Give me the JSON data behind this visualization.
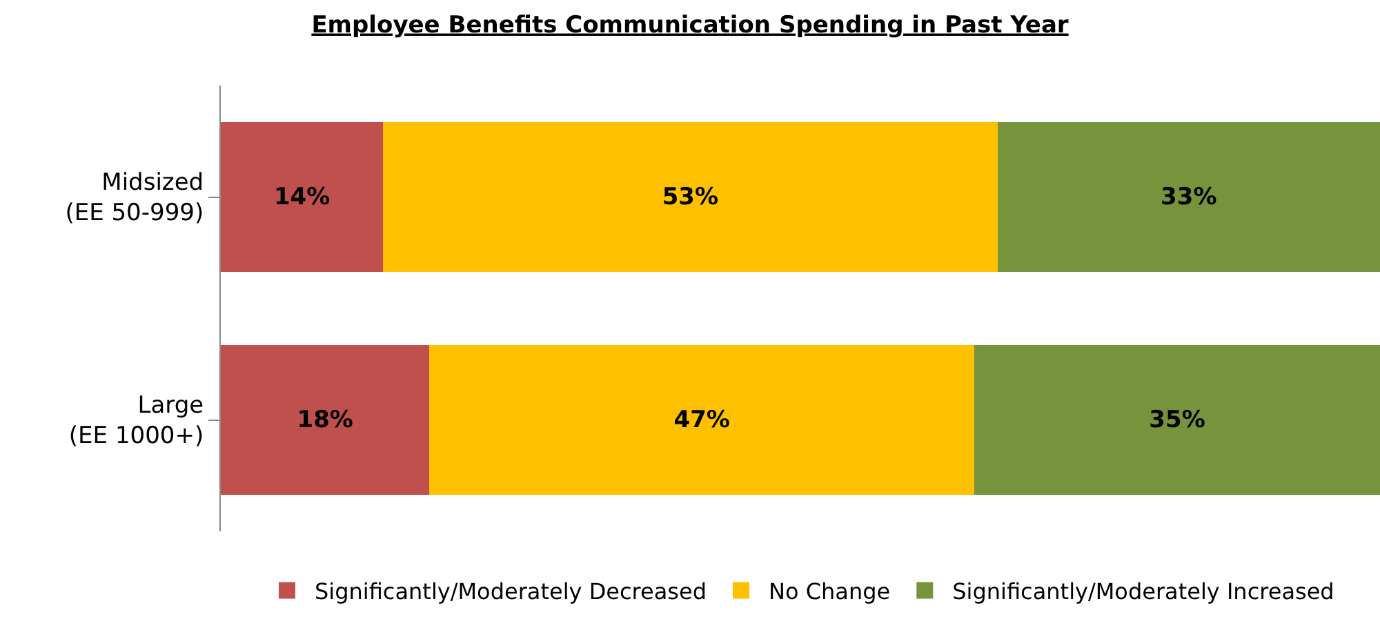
{
  "chart_data": {
    "type": "bar",
    "orientation": "horizontal",
    "stacked": true,
    "title": "Employee Benefits Communication Spending in Past Year",
    "categories": [
      "Midsized\n(EE 50-999)",
      "Large\n(EE 1000+)"
    ],
    "series": [
      {
        "name": "Significantly/Moderately Decreased",
        "color": "#c0504d",
        "values": [
          14,
          18
        ],
        "value_labels": [
          "14%",
          "18%"
        ]
      },
      {
        "name": "No Change",
        "color": "#ffc000",
        "values": [
          53,
          47
        ],
        "value_labels": [
          "53%",
          "47%"
        ]
      },
      {
        "name": "Significantly/Moderately Increased",
        "color": "#77933c",
        "values": [
          33,
          35
        ],
        "value_labels": [
          "33%",
          "35%"
        ]
      }
    ],
    "legend": "bottom",
    "tick_labels": "y"
  }
}
